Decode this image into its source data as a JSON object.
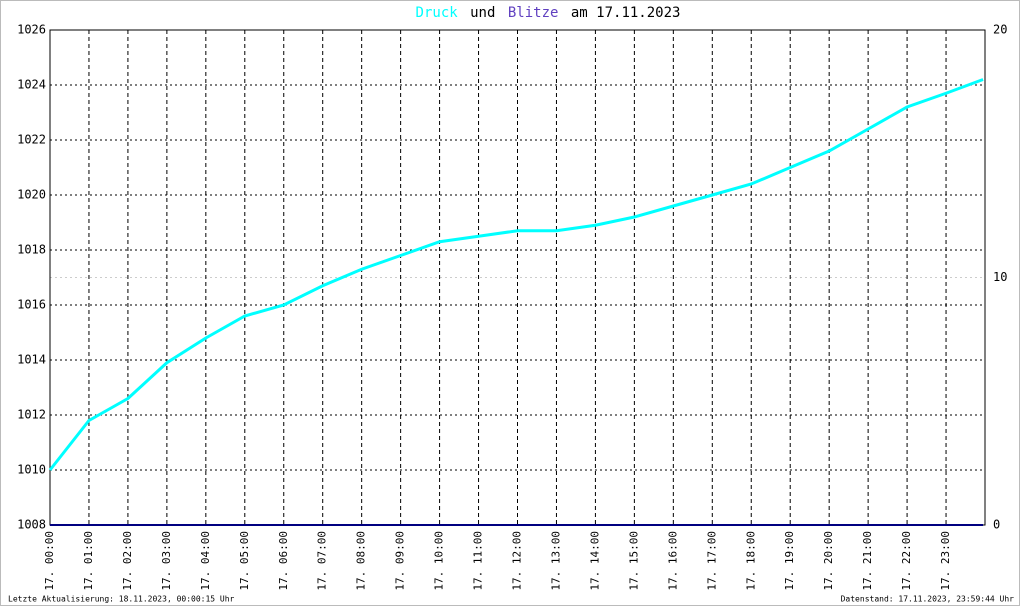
{
  "chart_data": {
    "type": "line",
    "title_connector": "und",
    "title_suffix": "am 17.11.2023",
    "footer_left": "Letzte Aktualisierung: 18.11.2023, 00:00:15 Uhr",
    "footer_right": "Datenstand: 17.11.2023, 23:59:44 Uhr",
    "x": [
      0,
      1,
      2,
      3,
      4,
      5,
      6,
      7,
      8,
      9,
      10,
      11,
      12,
      13,
      14,
      15,
      16,
      17,
      18,
      19,
      20,
      21,
      22,
      23,
      23.95
    ],
    "series": [
      {
        "name": "Druck",
        "color": "#00ffff",
        "axis": "y",
        "values": [
          1010.0,
          1011.8,
          1012.6,
          1013.9,
          1014.8,
          1015.6,
          1016.0,
          1016.7,
          1017.3,
          1017.8,
          1018.3,
          1018.5,
          1018.7,
          1018.7,
          1018.9,
          1019.2,
          1019.6,
          1020.0,
          1020.4,
          1021.0,
          1021.6,
          1022.4,
          1023.2,
          1023.7,
          1024.2
        ]
      },
      {
        "name": "Blitze",
        "color": "#6040c0",
        "line_color": "#000080",
        "axis": "y2",
        "values": [
          0,
          0,
          0,
          0,
          0,
          0,
          0,
          0,
          0,
          0,
          0,
          0,
          0,
          0,
          0,
          0,
          0,
          0,
          0,
          0,
          0,
          0,
          0,
          0,
          0
        ]
      }
    ],
    "xlim": [
      0,
      24
    ],
    "xticks": [
      {
        "value": 0,
        "label": "17. 00:00"
      },
      {
        "value": 1,
        "label": "17. 01:00"
      },
      {
        "value": 2,
        "label": "17. 02:00"
      },
      {
        "value": 3,
        "label": "17. 03:00"
      },
      {
        "value": 4,
        "label": "17. 04:00"
      },
      {
        "value": 5,
        "label": "17. 05:00"
      },
      {
        "value": 6,
        "label": "17. 06:00"
      },
      {
        "value": 7,
        "label": "17. 07:00"
      },
      {
        "value": 8,
        "label": "17. 08:00"
      },
      {
        "value": 9,
        "label": "17. 09:00"
      },
      {
        "value": 10,
        "label": "17. 10:00"
      },
      {
        "value": 11,
        "label": "17. 11:00"
      },
      {
        "value": 12,
        "label": "17. 12:00"
      },
      {
        "value": 13,
        "label": "17. 13:00"
      },
      {
        "value": 14,
        "label": "17. 14:00"
      },
      {
        "value": 15,
        "label": "17. 15:00"
      },
      {
        "value": 16,
        "label": "17. 16:00"
      },
      {
        "value": 17,
        "label": "17. 17:00"
      },
      {
        "value": 18,
        "label": "17. 18:00"
      },
      {
        "value": 19,
        "label": "17. 19:00"
      },
      {
        "value": 20,
        "label": "17. 20:00"
      },
      {
        "value": 21,
        "label": "17. 21:00"
      },
      {
        "value": 22,
        "label": "17. 22:00"
      },
      {
        "value": 23,
        "label": "17. 23:00"
      }
    ],
    "ylim": [
      1008,
      1026
    ],
    "yticks": [
      1008,
      1010,
      1012,
      1014,
      1016,
      1018,
      1020,
      1022,
      1024,
      1026
    ],
    "y2lim": [
      0,
      20
    ],
    "y2ticks": [
      0,
      10,
      20
    ],
    "grid": true
  }
}
